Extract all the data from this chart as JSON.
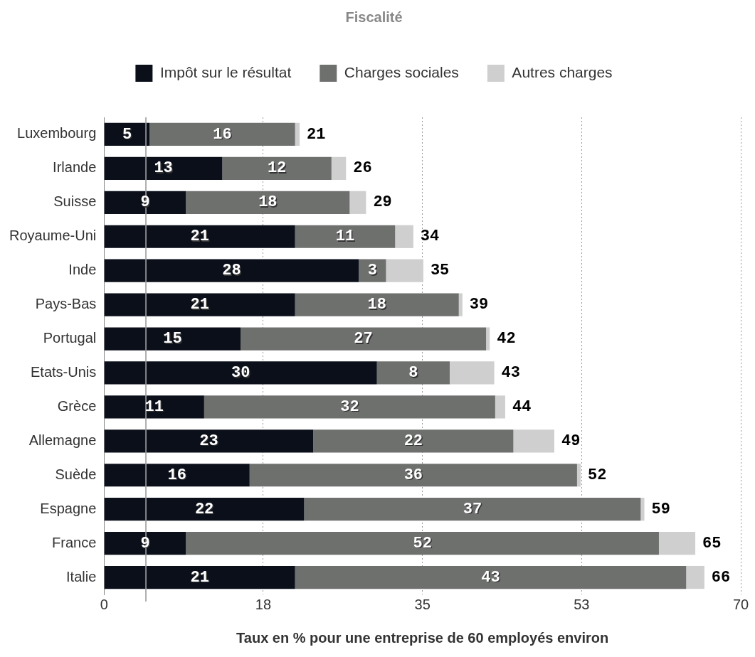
{
  "chart_data": {
    "type": "bar",
    "orientation": "horizontal",
    "stacked": true,
    "title": "Fiscalité",
    "xlabel": "Taux en % pour une entreprise de 60 employés environ",
    "categories": [
      "Luxembourg",
      "Irlande",
      "Suisse",
      "Royaume-Uni",
      "Inde",
      "Pays-Bas",
      "Portugal",
      "Etats-Unis",
      "Grèce",
      "Allemagne",
      "Suède",
      "Espagne",
      "France",
      "Italie"
    ],
    "series": [
      {
        "name": "Impôt sur le résultat",
        "color": "#0a0f1a",
        "values": [
          5,
          13,
          9,
          21,
          28,
          21,
          15,
          30,
          11,
          23,
          16,
          22,
          9,
          21
        ],
        "value_labels": [
          "5",
          "13",
          "9",
          "21",
          "28",
          "21",
          "15",
          "30",
          "11",
          "23",
          "16",
          "22",
          "9",
          "21"
        ]
      },
      {
        "name": "Charges sociales",
        "color": "#6e706e",
        "values": [
          16,
          12,
          18,
          11,
          3,
          18,
          27,
          8,
          32,
          22,
          36,
          37,
          52,
          43
        ],
        "value_labels": [
          "16",
          "12",
          "18",
          "11",
          "3",
          "18",
          "27",
          "8",
          "32",
          "22",
          "36",
          "37",
          "52",
          "43"
        ]
      },
      {
        "name": "Autres charges",
        "color": "#cfcfcf",
        "values": [
          0.5,
          1.6,
          1.8,
          2,
          4.1,
          0.4,
          0.4,
          4.9,
          1.1,
          4.5,
          0.4,
          0.4,
          4,
          2
        ]
      }
    ],
    "totals": [
      "21",
      "26",
      "29",
      "34",
      "35",
      "39",
      "42",
      "43",
      "44",
      "49",
      "52",
      "59",
      "65",
      "66"
    ],
    "xlim": [
      0,
      70
    ],
    "xticks": [
      0,
      {
        "value": 17.5,
        "label": "18"
      },
      35,
      {
        "value": 52.5,
        "label": "53"
      },
      70
    ],
    "ref_lines": [
      {
        "axis": "x",
        "value": 4.6,
        "color": "#aaaaaa",
        "line_style": "solid"
      }
    ],
    "grid": "x",
    "legend": "top"
  }
}
